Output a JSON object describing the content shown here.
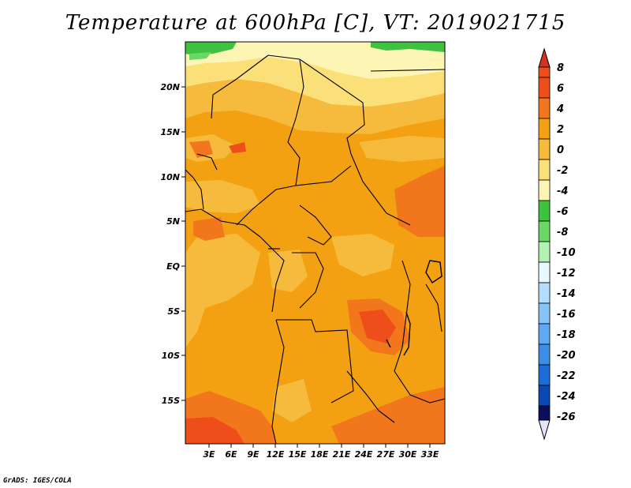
{
  "title": "Temperature at 600hPa [C], VT: 2019021715",
  "credit": "GrADS: IGES/COLA",
  "map": {
    "lat_labels": [
      "20N",
      "15N",
      "10N",
      "5N",
      "EQ",
      "5S",
      "10S",
      "15S"
    ],
    "lon_labels": [
      "3E",
      "6E",
      "9E",
      "12E",
      "15E",
      "18E",
      "21E",
      "24E",
      "27E",
      "30E",
      "33E"
    ]
  },
  "colorbar": {
    "labels": [
      "8",
      "6",
      "4",
      "2",
      "0",
      "-2",
      "-4",
      "-6",
      "-8",
      "-10",
      "-12",
      "-14",
      "-16",
      "-18",
      "-20",
      "-22",
      "-24",
      "-26"
    ],
    "colors": [
      "#d7321e",
      "#ee4f1a",
      "#f2771c",
      "#f3a012",
      "#f6bb3c",
      "#fbe07a",
      "#fdf5b4",
      "#3fc23f",
      "#6ad866",
      "#b4f0b4",
      "#e8f8ff",
      "#b3dcff",
      "#88c3f8",
      "#5fa8f2",
      "#3c8ee6",
      "#1c6dda",
      "#0a49b2",
      "#072b90",
      "#08105a",
      "#e4e4fa"
    ]
  }
}
